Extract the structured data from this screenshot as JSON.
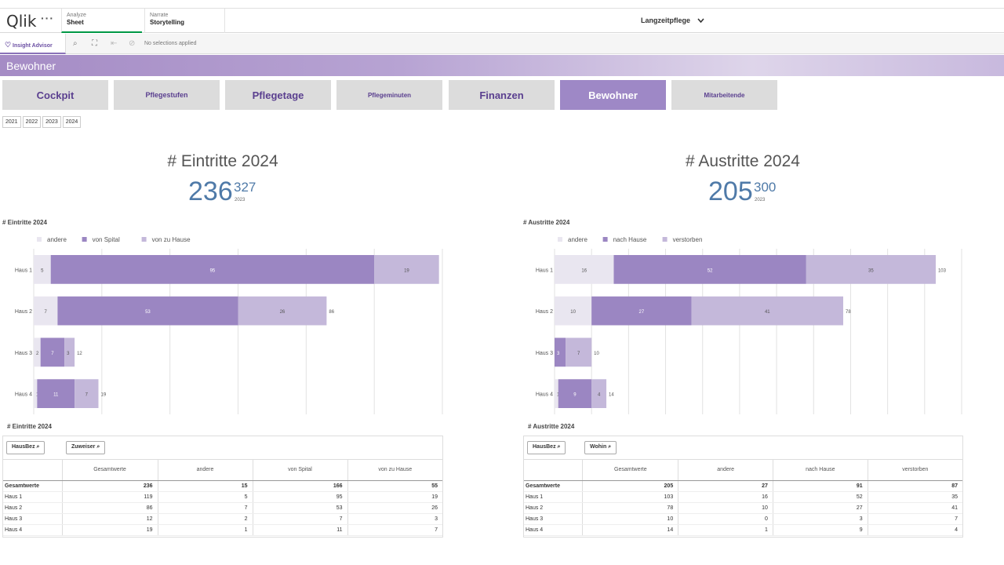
{
  "topbar": {
    "logo": "Qlik",
    "more": "···",
    "tabs": [
      {
        "small": "Analyze",
        "large": "Sheet"
      },
      {
        "small": "Narrate",
        "large": "Storytelling"
      }
    ],
    "app_title": "Langzeitpflege",
    "dropdown_icon": "chevron-down-icon"
  },
  "toolbar": {
    "insight_label": "Insight Advisor",
    "no_selections": "No selections applied"
  },
  "sheet": {
    "title": "Bewohner"
  },
  "nav_buttons": [
    {
      "label": "Cockpit",
      "active": false
    },
    {
      "label": "Pflegestufen",
      "active": false
    },
    {
      "label": "Pflegetage",
      "active": false
    },
    {
      "label": "Pflegeminuten",
      "active": false
    },
    {
      "label": "Finanzen",
      "active": false
    },
    {
      "label": "Bewohner",
      "active": true
    },
    {
      "label": "Mitarbeitende",
      "active": false
    }
  ],
  "years": [
    "2021",
    "2022",
    "2023",
    "2024"
  ],
  "kpi_left": {
    "title": "# Eintritte 2024",
    "value": "236",
    "compare": "327",
    "compare_year": "2023"
  },
  "kpi_right": {
    "title": "# Austritte 2024",
    "value": "205",
    "compare": "300",
    "compare_year": "2023"
  },
  "colors": {
    "andere": "#e9e6f0",
    "main": "#9b86c2",
    "second": "#c4b8da",
    "kpi": "#4f7aa8"
  },
  "chart_data": [
    {
      "type": "bar",
      "title": "# Eintritte 2024",
      "orientation": "horizontal",
      "stacked": true,
      "categories": [
        "Haus 1",
        "Haus 2",
        "Haus 3",
        "Haus 4"
      ],
      "series": [
        {
          "name": "andere",
          "values": [
            5,
            7,
            2,
            1
          ]
        },
        {
          "name": "von Spital",
          "values": [
            95,
            53,
            7,
            11
          ]
        },
        {
          "name": "von zu Hause",
          "values": [
            19,
            26,
            3,
            7
          ]
        }
      ],
      "totals": [
        119,
        86,
        12,
        19
      ],
      "xlim": [
        0,
        120
      ],
      "legend": "top-left",
      "grid": true
    },
    {
      "type": "bar",
      "title": "# Austritte 2024",
      "orientation": "horizontal",
      "stacked": true,
      "categories": [
        "Haus 1",
        "Haus 2",
        "Haus 3",
        "Haus 4"
      ],
      "series": [
        {
          "name": "andere",
          "values": [
            16,
            10,
            0,
            1
          ]
        },
        {
          "name": "nach Hause",
          "values": [
            52,
            27,
            3,
            9
          ]
        },
        {
          "name": "verstorben",
          "values": [
            35,
            41,
            7,
            4
          ]
        }
      ],
      "totals": [
        103,
        78,
        10,
        14
      ],
      "xlim": [
        0,
        110
      ],
      "legend": "top-left",
      "grid": true
    }
  ],
  "table_left": {
    "title": "# Eintritte 2024",
    "filters": [
      "HausBez",
      "Zuweiser"
    ],
    "headers": [
      "",
      "Gesamtwerte",
      "andere",
      "von Spital",
      "von zu Hause"
    ],
    "rows": [
      [
        "Gesamtwerte",
        "236",
        "15",
        "166",
        "55"
      ],
      [
        "Haus 1",
        "119",
        "5",
        "95",
        "19"
      ],
      [
        "Haus 2",
        "86",
        "7",
        "53",
        "26"
      ],
      [
        "Haus 3",
        "12",
        "2",
        "7",
        "3"
      ],
      [
        "Haus 4",
        "19",
        "1",
        "11",
        "7"
      ]
    ]
  },
  "table_right": {
    "title": "# Austritte 2024",
    "filters": [
      "HausBez",
      "Wohin"
    ],
    "headers": [
      "",
      "Gesamtwerte",
      "andere",
      "nach Hause",
      "verstorben"
    ],
    "rows": [
      [
        "Gesamtwerte",
        "205",
        "27",
        "91",
        "87"
      ],
      [
        "Haus 1",
        "103",
        "16",
        "52",
        "35"
      ],
      [
        "Haus 2",
        "78",
        "10",
        "27",
        "41"
      ],
      [
        "Haus 3",
        "10",
        "0",
        "3",
        "7"
      ],
      [
        "Haus 4",
        "14",
        "1",
        "9",
        "4"
      ]
    ]
  }
}
